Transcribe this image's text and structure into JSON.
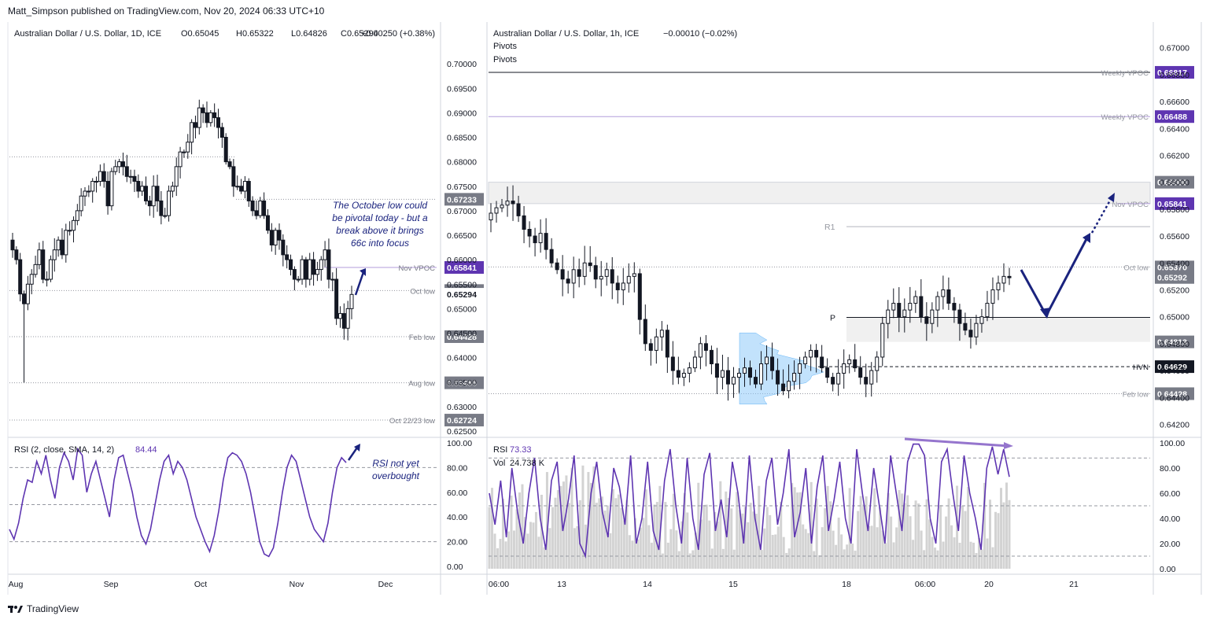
{
  "header": {
    "published": "Matt_Simpson published on TradingView.com, Nov 20, 2024 06:33 UTC+10"
  },
  "footer": {
    "brand": "TradingView",
    "logo_icon": "tradingview-logo-icon"
  },
  "chart_data": [
    {
      "id": "daily",
      "type": "candlestick",
      "title": "Australian Dollar / U.S. Dollar, 1D, ICE",
      "ohlc_readout": {
        "o": "O0.65045",
        "h": "H0.65322",
        "l": "L0.64826",
        "c": "C0.65294",
        "chg": "+0.00250 (+0.38%)"
      },
      "ylim": [
        0.625,
        0.705
      ],
      "yticks": [
        "0.70000",
        "0.69500",
        "0.69000",
        "0.68500",
        "0.68000",
        "0.67500",
        "0.67000",
        "0.66500",
        "0.66000",
        "0.65500",
        "0.65000",
        "0.64500",
        "0.64000",
        "0.63500",
        "0.63000",
        "0.62500"
      ],
      "xticks": [
        "Aug",
        "Sep",
        "Oct",
        "Nov",
        "Dec"
      ],
      "close_series": [
        0.662,
        0.66,
        0.653,
        0.651,
        0.655,
        0.657,
        0.659,
        0.662,
        0.656,
        0.656,
        0.66,
        0.662,
        0.664,
        0.661,
        0.666,
        0.666,
        0.668,
        0.67,
        0.673,
        0.674,
        0.674,
        0.676,
        0.676,
        0.678,
        0.676,
        0.671,
        0.678,
        0.679,
        0.68,
        0.679,
        0.677,
        0.677,
        0.676,
        0.674,
        0.675,
        0.672,
        0.671,
        0.675,
        0.672,
        0.669,
        0.669,
        0.674,
        0.675,
        0.679,
        0.682,
        0.682,
        0.684,
        0.688,
        0.687,
        0.691,
        0.69,
        0.688,
        0.69,
        0.689,
        0.687,
        0.685,
        0.68,
        0.679,
        0.675,
        0.675,
        0.674,
        0.676,
        0.672,
        0.67,
        0.669,
        0.672,
        0.669,
        0.666,
        0.663,
        0.666,
        0.664,
        0.661,
        0.66,
        0.658,
        0.656,
        0.656,
        0.66,
        0.656,
        0.66,
        0.657,
        0.658,
        0.66,
        0.662,
        0.656,
        0.656,
        0.648,
        0.649,
        0.646,
        0.65,
        0.6529
      ],
      "levels": [
        {
          "label": "Nov VPOC",
          "value": 0.65841,
          "price": "0.65841",
          "style": "vpoc"
        },
        {
          "label": "Oct low",
          "value": 0.6537,
          "price": "0.65370",
          "style": "dotted"
        },
        {
          "label": "Feb low",
          "value": 0.64428,
          "price": "0.64428",
          "style": "dotted"
        },
        {
          "label": "Aug low",
          "value": 0.63486,
          "price": "0.63486",
          "style": "dotted"
        },
        {
          "label": "Oct 22/23 low",
          "value": 0.62724,
          "price": "0.62724",
          "style": "dotted"
        },
        {
          "label": "",
          "value": 0.67233,
          "price": "0.67233",
          "style": "dotted"
        }
      ],
      "last_price": "0.65294",
      "annotation": [
        "The October low could",
        "be pivotal today - but a",
        "break above it brings",
        "66c into focus"
      ],
      "rsi": {
        "label": "RSI (2, close, SMA, 14, 2)",
        "value": "84.44",
        "ylim": [
          0,
          100
        ],
        "yticks": [
          "100.00",
          "80.00",
          "60.00",
          "40.00",
          "20.00",
          "0.00"
        ],
        "values": [
          30,
          22,
          35,
          55,
          70,
          68,
          85,
          75,
          90,
          70,
          55,
          80,
          92,
          85,
          70,
          95,
          90,
          60,
          75,
          85,
          70,
          55,
          40,
          70,
          88,
          90,
          75,
          60,
          40,
          25,
          18,
          30,
          50,
          70,
          85,
          90,
          75,
          85,
          80,
          70,
          55,
          40,
          30,
          20,
          12,
          25,
          45,
          70,
          88,
          92,
          90,
          85,
          75,
          60,
          40,
          20,
          10,
          8,
          15,
          35,
          60,
          80,
          90,
          85,
          70,
          55,
          40,
          30,
          25,
          20,
          35,
          60,
          80,
          88,
          84
        ],
        "annotation": [
          "RSI not yet",
          "overbought"
        ]
      }
    },
    {
      "id": "hourly",
      "type": "candlestick",
      "title": "Australian Dollar / U.S. Dollar, 1h, ICE",
      "change": "−0.00010 (−0.02%)",
      "indicator_labels": [
        "Pivots",
        "Pivots"
      ],
      "ylim": [
        0.6415,
        0.6715
      ],
      "yticks": [
        "0.67000",
        "0.66800",
        "0.66600",
        "0.66400",
        "0.66200",
        "0.66000",
        "0.65800",
        "0.65600",
        "0.65400",
        "0.65200",
        "0.65000",
        "0.64800",
        "0.64600",
        "0.64400",
        "0.64200"
      ],
      "xticks": [
        "06:00",
        "13",
        "14",
        "15",
        "18",
        "06:00",
        "20",
        "21"
      ],
      "close_series": [
        0.6577,
        0.6581,
        0.6583,
        0.6586,
        0.6584,
        0.6575,
        0.6565,
        0.656,
        0.6555,
        0.6562,
        0.655,
        0.654,
        0.6535,
        0.6528,
        0.6525,
        0.6535,
        0.653,
        0.654,
        0.6538,
        0.6528,
        0.653,
        0.6535,
        0.6525,
        0.652,
        0.6525,
        0.653,
        0.6532,
        0.6498,
        0.648,
        0.6475,
        0.6485,
        0.649,
        0.647,
        0.646,
        0.6455,
        0.6458,
        0.6462,
        0.647,
        0.648,
        0.6475,
        0.6465,
        0.6455,
        0.646,
        0.645,
        0.6455,
        0.6458,
        0.6462,
        0.6455,
        0.645,
        0.6465,
        0.647,
        0.646,
        0.645,
        0.6445,
        0.6452,
        0.6458,
        0.6465,
        0.647,
        0.6475,
        0.647,
        0.6462,
        0.6455,
        0.645,
        0.6458,
        0.6465,
        0.6468,
        0.6462,
        0.6455,
        0.645,
        0.646,
        0.647,
        0.6495,
        0.6505,
        0.651,
        0.65,
        0.6505,
        0.651,
        0.6515,
        0.65,
        0.6495,
        0.6505,
        0.6515,
        0.652,
        0.651,
        0.6505,
        0.6495,
        0.649,
        0.6485,
        0.6495,
        0.65,
        0.651,
        0.652,
        0.6525,
        0.653,
        0.6529
      ],
      "levels": [
        {
          "label": "Weekly VPOC",
          "value": 0.66817,
          "price": "0.66817",
          "style": "vpoc"
        },
        {
          "label": "Weekly VPOC",
          "value": 0.66488,
          "price": "0.66488",
          "style": "vpoc"
        },
        {
          "label": "",
          "value": 0.66,
          "price": "0.66000",
          "style": "zone"
        },
        {
          "label": "Nov VPOC",
          "value": 0.65841,
          "price": "0.65841",
          "style": "vpoc"
        },
        {
          "label": "R1",
          "value": 0.6567,
          "price": "",
          "style": "pivot"
        },
        {
          "label": "Oct low",
          "value": 0.6537,
          "price": "0.65370",
          "style": "dotted"
        },
        {
          "label": "P",
          "value": 0.64995,
          "price": "",
          "style": "pivot"
        },
        {
          "label": "",
          "value": 0.64813,
          "price": "0.64813",
          "style": "zone"
        },
        {
          "label": "HVN",
          "value": 0.64629,
          "price": "0.64629",
          "style": "dashed"
        },
        {
          "label": "Feb low",
          "value": 0.64428,
          "price": "0.64428",
          "style": "dotted"
        }
      ],
      "last_price": "0.65292",
      "rsi": {
        "label": "RSI",
        "value": "73.33",
        "vol_label": "Vol",
        "vol_value": "24.738 K",
        "ylim": [
          0,
          100
        ],
        "yticks": [
          "100.00",
          "80.00",
          "60.00",
          "40.00",
          "20.00",
          "0.00"
        ],
        "values": [
          60,
          35,
          70,
          25,
          80,
          45,
          20,
          60,
          88,
          40,
          15,
          70,
          85,
          30,
          55,
          90,
          20,
          10,
          60,
          85,
          45,
          25,
          80,
          65,
          35,
          90,
          20,
          40,
          85,
          30,
          15,
          70,
          95,
          50,
          20,
          88,
          40,
          15,
          75,
          92,
          30,
          55,
          25,
          85,
          60,
          20,
          90,
          40,
          15,
          70,
          88,
          35,
          60,
          95,
          25,
          45,
          80,
          20,
          65,
          90,
          30,
          55,
          85,
          40,
          20,
          95,
          60,
          30,
          80,
          50,
          20,
          90,
          60,
          30,
          85,
          99,
          99,
          90,
          40,
          20,
          85,
          95,
          60,
          30,
          90,
          60,
          40,
          15,
          80,
          97,
          75,
          95,
          73
        ]
      }
    }
  ]
}
